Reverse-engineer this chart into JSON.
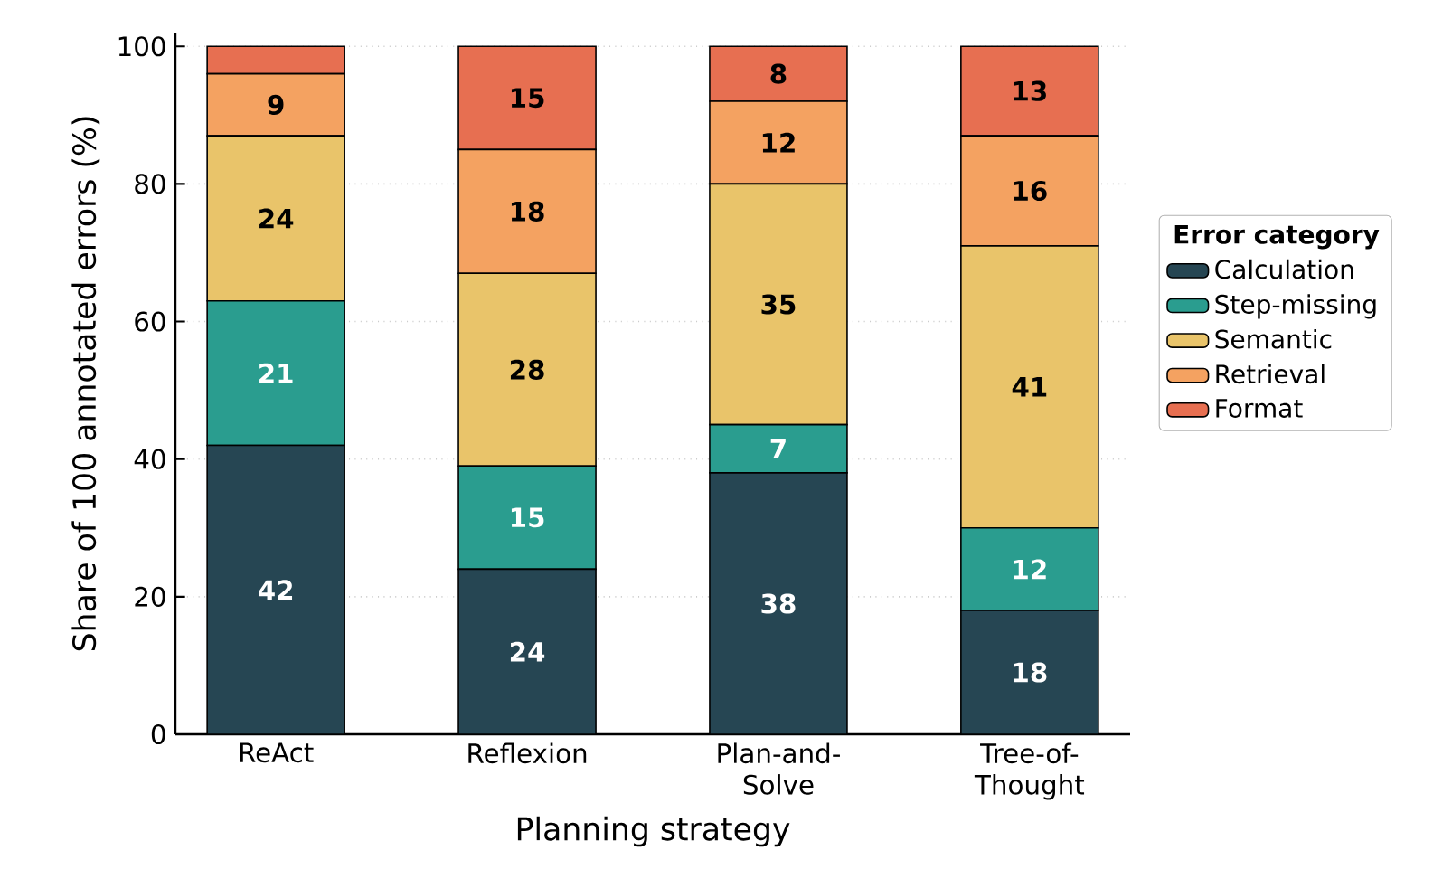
{
  "chart_data": {
    "type": "bar",
    "stacked": true,
    "xlabel": "Planning strategy",
    "ylabel": "Share of 100 annotated errors (%)",
    "legend_title": "Error category",
    "categories": [
      "ReAct",
      "Reflexion",
      "Plan-and-Solve",
      "Tree-of-Thought"
    ],
    "series": [
      {
        "name": "Calculation",
        "color": "#264653",
        "values": [
          42,
          24,
          38,
          18
        ],
        "value_labels": [
          "42",
          "24",
          "38",
          "18"
        ]
      },
      {
        "name": "Step-missing",
        "color": "#2a9d8f",
        "values": [
          21,
          15,
          7,
          12
        ],
        "value_labels": [
          "21",
          "15",
          "7",
          "12"
        ]
      },
      {
        "name": "Semantic",
        "color": "#e9c46a",
        "values": [
          24,
          28,
          35,
          41
        ],
        "value_labels": [
          "24",
          "28",
          "35",
          "41"
        ]
      },
      {
        "name": "Retrieval",
        "color": "#f4a261",
        "values": [
          9,
          18,
          12,
          16
        ],
        "value_labels": [
          "9",
          "18",
          "12",
          "16"
        ]
      },
      {
        "name": "Format",
        "color": "#e76f51",
        "values": [
          4,
          15,
          8,
          13
        ],
        "value_labels": [
          null,
          "15",
          "8",
          "13"
        ]
      }
    ],
    "ylim": [
      0,
      102
    ],
    "yticks": [
      0,
      20,
      40,
      60,
      80,
      100
    ],
    "grid": "y",
    "legend": "right"
  }
}
